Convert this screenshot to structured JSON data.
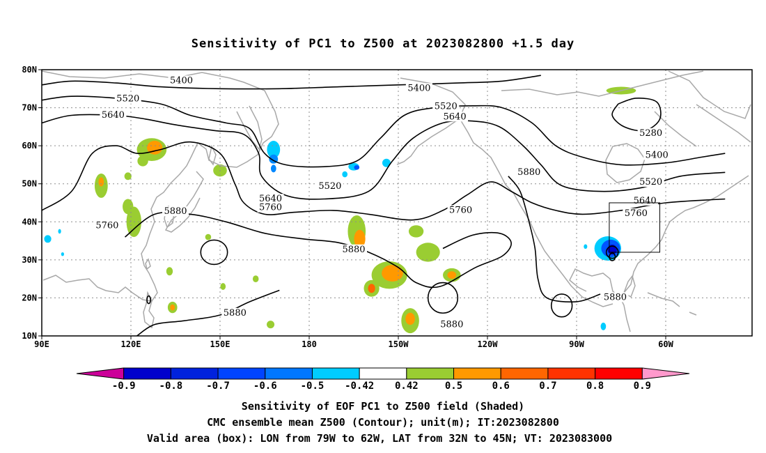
{
  "title": "Sensitivity of PC1 to Z500 at 2023082800 +1.5 day",
  "map": {
    "lon_range": [
      90,
      278
    ],
    "lat_range": [
      10,
      80
    ],
    "lat_ticks": [
      {
        "lat": 80,
        "label": "80N"
      },
      {
        "lat": 70,
        "label": "70N"
      },
      {
        "lat": 60,
        "label": "60N"
      },
      {
        "lat": 50,
        "label": "50N"
      },
      {
        "lat": 40,
        "label": "40N"
      },
      {
        "lat": 30,
        "label": "30N"
      },
      {
        "lat": 20,
        "label": "20N"
      },
      {
        "lat": 10,
        "label": "10N"
      }
    ],
    "lon_ticks": [
      {
        "lon": 90,
        "label": "90E"
      },
      {
        "lon": 120,
        "label": "120E"
      },
      {
        "lon": 150,
        "label": "150E"
      },
      {
        "lon": 180,
        "label": "180"
      },
      {
        "lon": 210,
        "label": "150W"
      },
      {
        "lon": 240,
        "label": "120W"
      },
      {
        "lon": 270,
        "label": "90W"
      },
      {
        "lon": 300,
        "label": "60W"
      }
    ],
    "grid": "dotted",
    "colors": {
      "coast": "#a8a8a8",
      "contour": "#000000",
      "grid": "#8c8c8c",
      "box": "#000000"
    }
  },
  "contours": [
    {
      "label": "5400",
      "points": [
        [
          90,
          76
        ],
        [
          100,
          77
        ],
        [
          115,
          76.5
        ],
        [
          130,
          75.5
        ],
        [
          150,
          75
        ],
        [
          170,
          75
        ],
        [
          190,
          75.5
        ],
        [
          210,
          76
        ],
        [
          230,
          76.5
        ],
        [
          245,
          77
        ],
        [
          258,
          78.5
        ]
      ]
    },
    {
      "label": "5520",
      "points": [
        [
          90,
          72
        ],
        [
          100,
          73
        ],
        [
          115,
          72.5
        ],
        [
          130,
          71
        ],
        [
          140,
          68
        ],
        [
          152,
          66
        ],
        [
          160,
          64.5
        ],
        [
          165,
          58
        ],
        [
          172,
          55
        ],
        [
          185,
          54.5
        ],
        [
          196,
          56
        ],
        [
          204,
          62
        ],
        [
          212,
          68
        ],
        [
          222,
          70
        ],
        [
          235,
          70.5
        ],
        [
          245,
          70
        ],
        [
          255,
          66
        ],
        [
          263,
          60
        ],
        [
          272,
          57
        ],
        [
          285,
          55
        ],
        [
          300,
          55.5
        ],
        [
          312,
          57
        ],
        [
          320,
          58
        ]
      ]
    },
    {
      "label": "5640",
      "points": [
        [
          90,
          66
        ],
        [
          100,
          68
        ],
        [
          115,
          68
        ],
        [
          125,
          67
        ],
        [
          135,
          65.5
        ],
        [
          148,
          64
        ],
        [
          158,
          63
        ],
        [
          163,
          58
        ],
        [
          164,
          52
        ],
        [
          172,
          47
        ],
        [
          185,
          46
        ],
        [
          200,
          48
        ],
        [
          208,
          56
        ],
        [
          215,
          62
        ],
        [
          225,
          66
        ],
        [
          235,
          66.5
        ],
        [
          244,
          65
        ],
        [
          252,
          60
        ],
        [
          258,
          55
        ],
        [
          265,
          49.5
        ],
        [
          278,
          48
        ],
        [
          292,
          49
        ],
        [
          305,
          52
        ],
        [
          320,
          53
        ]
      ]
    },
    {
      "label": "5760",
      "points": [
        [
          90,
          43
        ],
        [
          100,
          48
        ],
        [
          107,
          58
        ],
        [
          115,
          60
        ],
        [
          122,
          58
        ],
        [
          130,
          59
        ],
        [
          140,
          61
        ],
        [
          150,
          58
        ],
        [
          155,
          50
        ],
        [
          158,
          45
        ],
        [
          165,
          42
        ],
        [
          175,
          42.5
        ],
        [
          188,
          43
        ],
        [
          200,
          42
        ],
        [
          215,
          40.5
        ],
        [
          225,
          43
        ],
        [
          233,
          47
        ],
        [
          241,
          50.5
        ],
        [
          248,
          48
        ],
        [
          255,
          45
        ],
        [
          263,
          43
        ],
        [
          272,
          42
        ],
        [
          285,
          43
        ],
        [
          300,
          45
        ],
        [
          320,
          46
        ]
      ]
    },
    {
      "label": "5880",
      "points": [
        [
          118,
          36
        ],
        [
          128,
          42
        ],
        [
          140,
          42
        ],
        [
          152,
          40
        ],
        [
          165,
          37
        ],
        [
          178,
          35.5
        ],
        [
          190,
          34.5
        ],
        [
          200,
          32
        ],
        [
          210,
          28
        ],
        [
          216,
          24
        ],
        [
          224,
          23
        ],
        [
          236,
          28
        ],
        [
          245,
          31
        ],
        [
          248,
          34.5
        ],
        [
          244,
          37
        ],
        [
          235,
          36.5
        ],
        [
          225,
          33
        ]
      ]
    },
    {
      "label": "5880",
      "points": [
        [
          247,
          52
        ],
        [
          251,
          48
        ],
        [
          254,
          40
        ],
        [
          256,
          33
        ],
        [
          257,
          25
        ],
        [
          260,
          20
        ],
        [
          270,
          19
        ],
        [
          278,
          21
        ]
      ]
    },
    {
      "label": "5880",
      "points": [
        [
          122,
          10
        ],
        [
          128,
          13
        ],
        [
          138,
          14
        ],
        [
          150,
          15.5
        ],
        [
          160,
          19
        ],
        [
          170,
          22
        ]
      ]
    },
    {
      "label": "5280",
      "points": [
        [
          284,
          71
        ],
        [
          290,
          72.5
        ],
        [
          297,
          71.5
        ],
        [
          298,
          67
        ],
        [
          293,
          64
        ],
        [
          286,
          65
        ],
        [
          282,
          68
        ],
        [
          284,
          71
        ]
      ]
    }
  ],
  "contour_labels": [
    {
      "text": "5400",
      "lon": 137,
      "lat": 76.8
    },
    {
      "text": "5400",
      "lon": 217,
      "lat": 74.8
    },
    {
      "text": "5520",
      "lon": 119,
      "lat": 72
    },
    {
      "text": "5520",
      "lon": 226,
      "lat": 70
    },
    {
      "text": "5640",
      "lon": 114,
      "lat": 67.7
    },
    {
      "text": "5640",
      "lon": 229,
      "lat": 67.3
    },
    {
      "text": "5280",
      "lon": 295,
      "lat": 63
    },
    {
      "text": "5400",
      "lon": 297,
      "lat": 57.2
    },
    {
      "text": "5520",
      "lon": 295,
      "lat": 50.1
    },
    {
      "text": "5640",
      "lon": 293,
      "lat": 45.2
    },
    {
      "text": "5880",
      "lon": 254,
      "lat": 52.7
    },
    {
      "text": "5520",
      "lon": 187,
      "lat": 49
    },
    {
      "text": "5640",
      "lon": 167,
      "lat": 45.7
    },
    {
      "text": "5760",
      "lon": 167,
      "lat": 43.4
    },
    {
      "text": "5760",
      "lon": 231,
      "lat": 42.7
    },
    {
      "text": "5760",
      "lon": 290,
      "lat": 41.9
    },
    {
      "text": "5880",
      "lon": 135,
      "lat": 42.4
    },
    {
      "text": "5760",
      "lon": 112,
      "lat": 38.7
    },
    {
      "text": "5880",
      "lon": 195,
      "lat": 32.4
    },
    {
      "text": "5880",
      "lon": 155,
      "lat": 15.7
    },
    {
      "text": "5880",
      "lon": 228,
      "lat": 12.7
    },
    {
      "text": "5880",
      "lon": 283,
      "lat": 19.8
    }
  ],
  "shaded": [
    {
      "lon": 127,
      "lat": 59,
      "rx": 5,
      "ry": 3,
      "color": "#9acd32"
    },
    {
      "lon": 128,
      "lat": 59.5,
      "rx": 2.6,
      "ry": 1.8,
      "color": "#ff9900"
    },
    {
      "lon": 124,
      "lat": 56,
      "rx": 1.8,
      "ry": 1.4,
      "color": "#9acd32"
    },
    {
      "lon": 110,
      "lat": 49.5,
      "rx": 2.2,
      "ry": 3.2,
      "color": "#9acd32"
    },
    {
      "lon": 110,
      "lat": 50.5,
      "rx": 0.9,
      "ry": 1.2,
      "color": "#ff9900"
    },
    {
      "lon": 121,
      "lat": 40,
      "rx": 2.5,
      "ry": 4,
      "color": "#9acd32"
    },
    {
      "lon": 119,
      "lat": 44,
      "rx": 1.8,
      "ry": 2,
      "color": "#9acd32"
    },
    {
      "lon": 119,
      "lat": 52,
      "rx": 1.2,
      "ry": 1,
      "color": "#9acd32"
    },
    {
      "lon": 150,
      "lat": 53.5,
      "rx": 2.3,
      "ry": 1.6,
      "color": "#9acd32"
    },
    {
      "lon": 146,
      "lat": 36,
      "rx": 1,
      "ry": 0.8,
      "color": "#9acd32"
    },
    {
      "lon": 133,
      "lat": 27,
      "rx": 1.1,
      "ry": 1.1,
      "color": "#9acd32"
    },
    {
      "lon": 134,
      "lat": 17.5,
      "rx": 1.6,
      "ry": 1.5,
      "color": "#9acd32"
    },
    {
      "lon": 134,
      "lat": 17.5,
      "rx": 0.8,
      "ry": 0.8,
      "color": "#ff9900"
    },
    {
      "lon": 151,
      "lat": 23,
      "rx": 0.9,
      "ry": 0.9,
      "color": "#9acd32"
    },
    {
      "lon": 162,
      "lat": 25,
      "rx": 1,
      "ry": 0.9,
      "color": "#9acd32"
    },
    {
      "lon": 167,
      "lat": 13,
      "rx": 1.3,
      "ry": 1,
      "color": "#9acd32"
    },
    {
      "lon": 196,
      "lat": 37.5,
      "rx": 3,
      "ry": 4.2,
      "color": "#9acd32"
    },
    {
      "lon": 197,
      "lat": 35.5,
      "rx": 1.9,
      "ry": 2.4,
      "color": "#ff9900"
    },
    {
      "lon": 207,
      "lat": 26,
      "rx": 6,
      "ry": 3.6,
      "color": "#9acd32"
    },
    {
      "lon": 208,
      "lat": 26.5,
      "rx": 3.6,
      "ry": 2.2,
      "color": "#ff9900"
    },
    {
      "lon": 201,
      "lat": 22.5,
      "rx": 2.6,
      "ry": 2.2,
      "color": "#9acd32"
    },
    {
      "lon": 201,
      "lat": 22.5,
      "rx": 1.2,
      "ry": 1.2,
      "color": "#ff6600"
    },
    {
      "lon": 220,
      "lat": 32,
      "rx": 4,
      "ry": 2.5,
      "color": "#9acd32"
    },
    {
      "lon": 216,
      "lat": 37.5,
      "rx": 2.5,
      "ry": 1.6,
      "color": "#9acd32"
    },
    {
      "lon": 228,
      "lat": 26,
      "rx": 3,
      "ry": 1.8,
      "color": "#9acd32"
    },
    {
      "lon": 228,
      "lat": 26,
      "rx": 1.5,
      "ry": 1,
      "color": "#ff9900"
    },
    {
      "lon": 214,
      "lat": 14,
      "rx": 3,
      "ry": 3.3,
      "color": "#9acd32"
    },
    {
      "lon": 214,
      "lat": 14.5,
      "rx": 1.6,
      "ry": 1.6,
      "color": "#ff9900"
    },
    {
      "lon": 285,
      "lat": 74.5,
      "rx": 5,
      "ry": 1,
      "color": "#9acd32"
    },
    {
      "lon": 168,
      "lat": 59,
      "rx": 2.2,
      "ry": 2.3,
      "color": "#00ccff"
    },
    {
      "lon": 168,
      "lat": 56.5,
      "rx": 1.5,
      "ry": 1.2,
      "color": "#0088ff"
    },
    {
      "lon": 168,
      "lat": 54,
      "rx": 0.9,
      "ry": 1,
      "color": "#0088ff"
    },
    {
      "lon": 195,
      "lat": 54.5,
      "rx": 1.8,
      "ry": 1,
      "color": "#00ccff"
    },
    {
      "lon": 196,
      "lat": 54.3,
      "rx": 0.9,
      "ry": 0.6,
      "color": "#0055ff"
    },
    {
      "lon": 192,
      "lat": 52.5,
      "rx": 0.9,
      "ry": 0.8,
      "color": "#00ccff"
    },
    {
      "lon": 206,
      "lat": 55.5,
      "rx": 1.4,
      "ry": 1.1,
      "color": "#00ccff"
    },
    {
      "lon": 92,
      "lat": 35.5,
      "rx": 1.2,
      "ry": 1,
      "color": "#00ccff"
    },
    {
      "lon": 96,
      "lat": 37.5,
      "rx": 0.5,
      "ry": 0.6,
      "color": "#00ccff"
    },
    {
      "lon": 97,
      "lat": 31.5,
      "rx": 0.5,
      "ry": 0.5,
      "color": "#00ccff"
    },
    {
      "lon": 280.5,
      "lat": 33,
      "rx": 4.5,
      "ry": 3.2,
      "color": "#00ccff"
    },
    {
      "lon": 281.5,
      "lat": 33,
      "rx": 3.2,
      "ry": 2.3,
      "color": "#0055ff"
    },
    {
      "lon": 282,
      "lat": 32.7,
      "rx": 1.6,
      "ry": 1.3,
      "color": "#0000cc"
    },
    {
      "lon": 273,
      "lat": 33.5,
      "rx": 0.6,
      "ry": 0.6,
      "color": "#00ccff"
    },
    {
      "lon": 279,
      "lat": 12.5,
      "rx": 0.9,
      "ry": 1,
      "color": "#00ccff"
    }
  ],
  "box": {
    "lon": [
      281,
      298
    ],
    "lat": [
      32,
      45
    ]
  },
  "colorbar": {
    "colors": [
      "#cc0099",
      "#0000cc",
      "#0022dd",
      "#0044ff",
      "#0077ff",
      "#00ccff",
      "#ffffff",
      "#9acd32",
      "#ff9900",
      "#ff6600",
      "#ff3300",
      "#ff0000",
      "#ff99cc"
    ],
    "labels": [
      "-0.9",
      "-0.8",
      "-0.7",
      "-0.6",
      "-0.5",
      "-0.42",
      "0.42",
      "0.5",
      "0.6",
      "0.7",
      "0.8",
      "0.9"
    ]
  },
  "caption": {
    "line1": "Sensitivity of EOF PC1 to Z500 field (Shaded)",
    "line2": "CMC ensemble mean Z500 (Contour); unit(m); IT:2023082800",
    "line3": "Valid area (box): LON from 79W to 62W, LAT from 32N to 45N; VT: 2023083000"
  }
}
